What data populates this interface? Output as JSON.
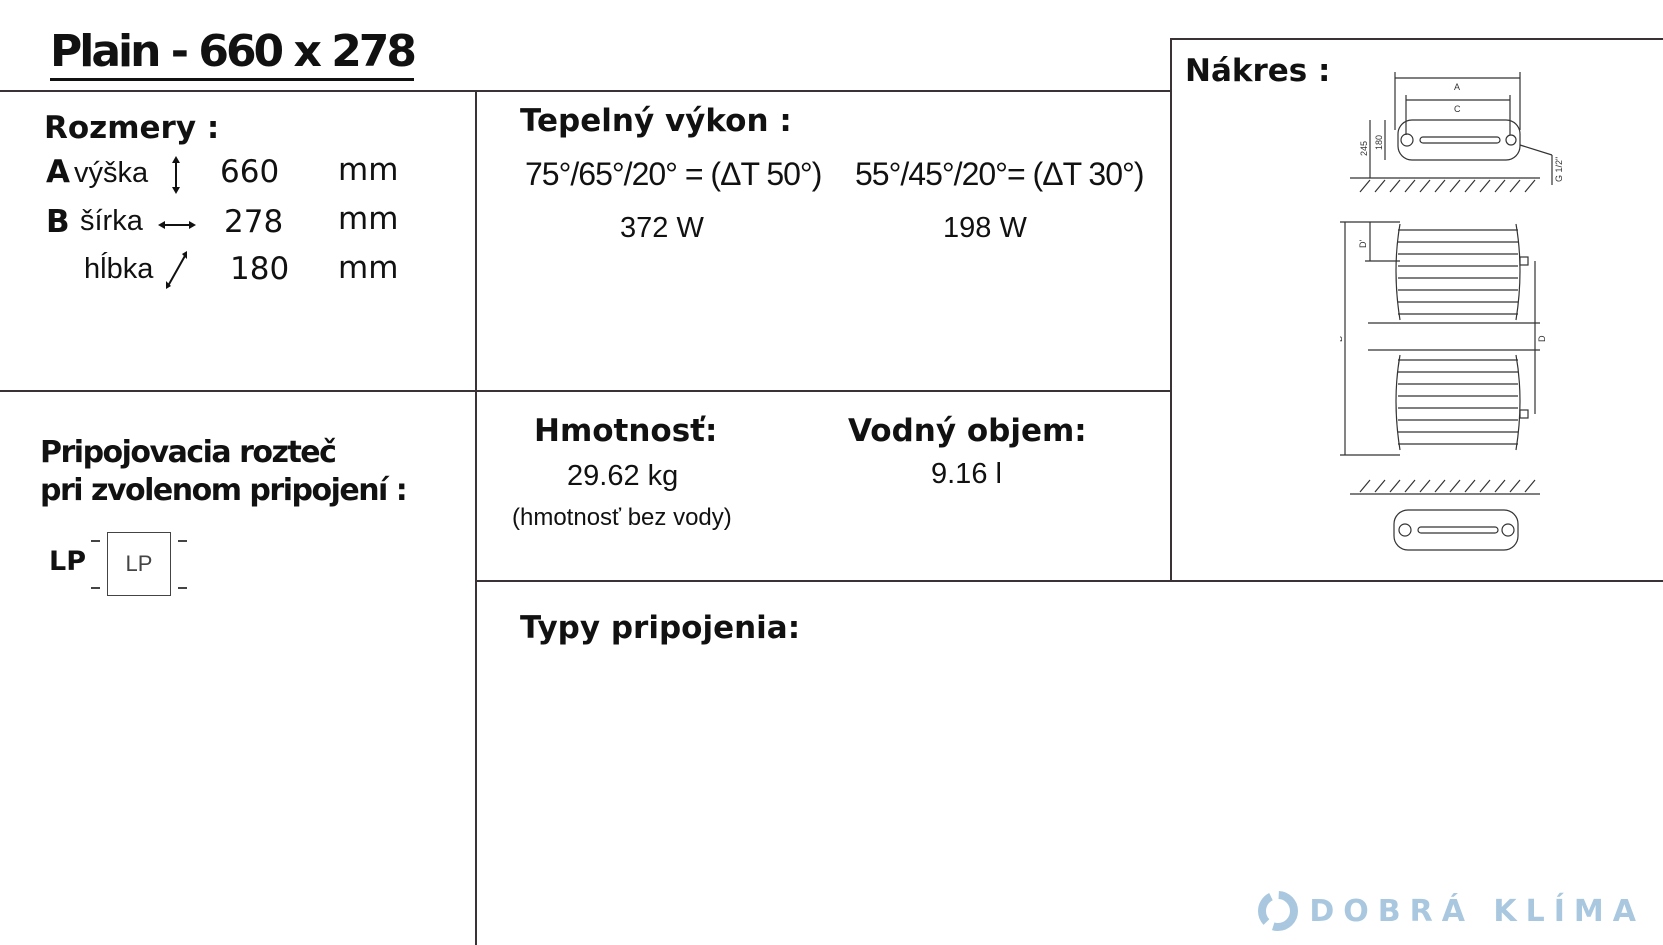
{
  "title": "Plain - 660 x 278",
  "dimensions": {
    "heading": "Rozmery :",
    "rows": [
      {
        "letter": "A",
        "label": "výška",
        "icon": "vertical-arrow-icon",
        "value": "660",
        "unit": "mm"
      },
      {
        "letter": "B",
        "label": "šírka",
        "icon": "horizontal-arrow-icon",
        "value": "278",
        "unit": "mm"
      },
      {
        "letter": "",
        "label": "hĺbka",
        "icon": "diagonal-arrow-icon",
        "value": "180",
        "unit": "mm"
      }
    ]
  },
  "heat_output": {
    "heading": "Tepelný výkon :",
    "conditions": [
      {
        "label": "75°/65°/20° = (ΔT 50°)",
        "value": "372 W"
      },
      {
        "label": "55°/45°/20°= (ΔT 30°)",
        "value": "198 W"
      }
    ]
  },
  "weight": {
    "heading": "Hmotnosť:",
    "value": "29.62 kg",
    "note": "(hmotnosť bez vody)"
  },
  "water_volume": {
    "heading": "Vodný objem:",
    "value": "9.16 l"
  },
  "connection": {
    "heading_line1": "Pripojovacia rozteč",
    "heading_line2": "pri zvolenom pripojení :",
    "type": "LP",
    "box_label": "LP"
  },
  "connection_types": {
    "heading": "Typy pripojenia:"
  },
  "drawing": {
    "heading": "Nákres :",
    "labels": [
      "A",
      "C",
      "245",
      "180",
      "G 1/2\"",
      "B",
      "D",
      "D'"
    ]
  },
  "brand": {
    "name": "DOBRÁ KLÍMA",
    "color": "#a9c8e0"
  }
}
